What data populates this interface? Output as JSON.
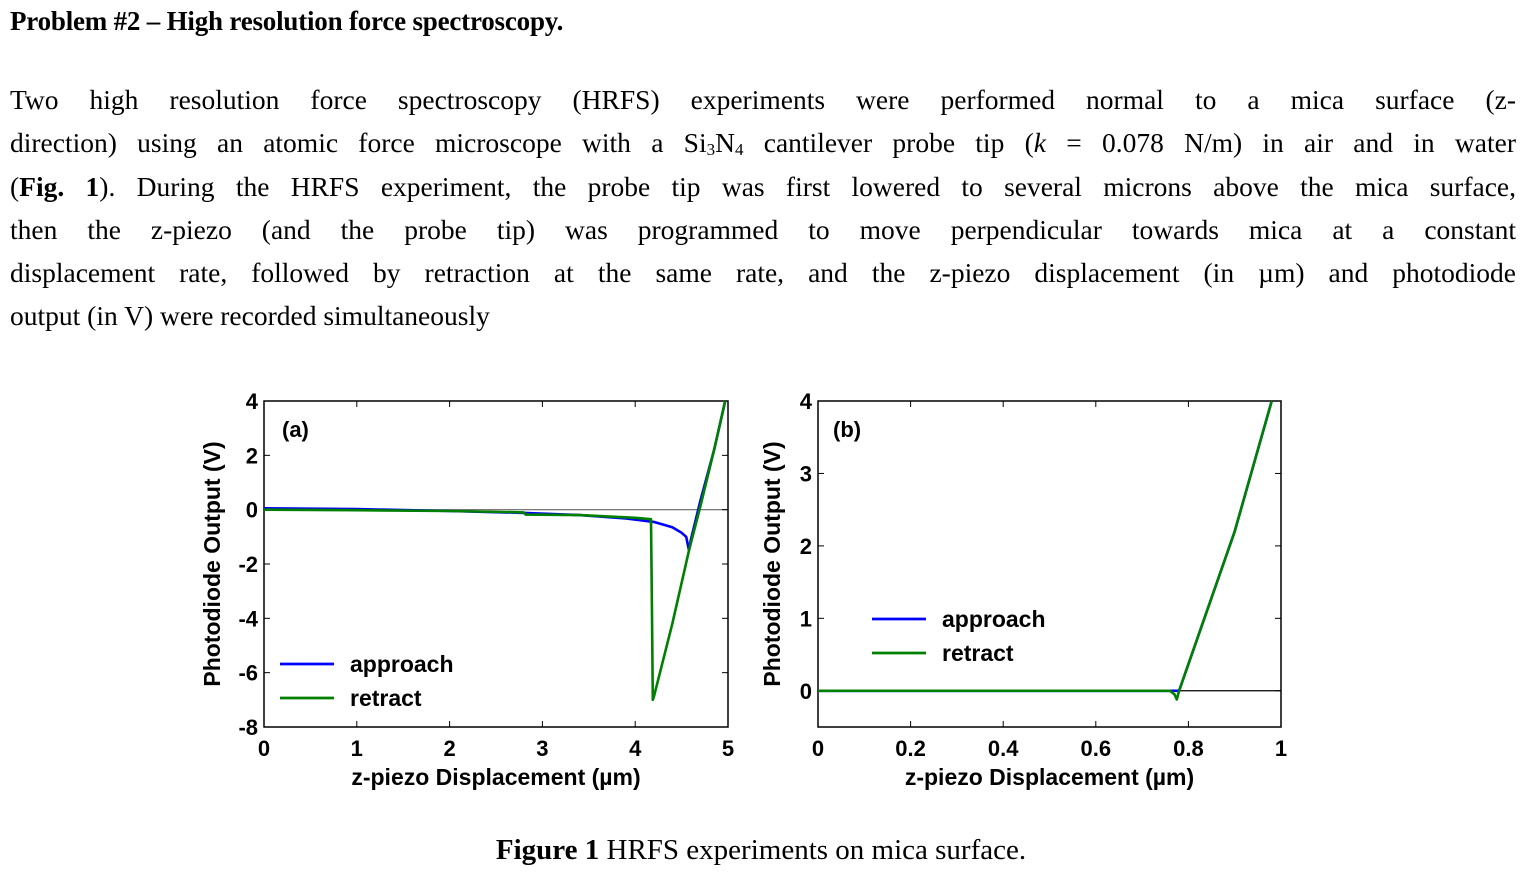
{
  "document": {
    "title": "Problem #2 – High resolution force spectroscopy.",
    "paragraph_lines": [
      {
        "parts": [
          {
            "t": "Two high resolution force spectroscopy (HRFS) experiments were performed normal to a mica surface (z-"
          }
        ]
      },
      {
        "parts": [
          {
            "t": "direction) using an atomic force microscope with a Si"
          },
          {
            "t": "3",
            "sub": true
          },
          {
            "t": "N"
          },
          {
            "t": "4",
            "sub": true
          },
          {
            "t": " cantilever probe tip ("
          },
          {
            "t": "k",
            "i": true
          },
          {
            "t": " = 0.078 N/m) in air and in water"
          }
        ]
      },
      {
        "parts": [
          {
            "t": "("
          },
          {
            "t": "Fig. 1",
            "b": true
          },
          {
            "t": "). During the HRFS experiment, the probe tip was first lowered to several microns above the mica surface,"
          }
        ]
      },
      {
        "parts": [
          {
            "t": "then the z-piezo (and the probe tip) was programmed to move perpendicular towards mica at a constant"
          }
        ]
      },
      {
        "parts": [
          {
            "t": "displacement rate, followed by retraction at the same rate, and the z-piezo displacement (in µm) and photodiode"
          }
        ]
      },
      {
        "parts": [
          {
            "t": "output (in V) were recorded simultaneously"
          }
        ]
      }
    ],
    "caption": {
      "label": "Figure 1",
      "text": " HRFS experiments on mica surface."
    }
  },
  "colors": {
    "approach": "#0000ff",
    "retract": "#008000",
    "axis": "#000000",
    "zero_line": "#555555"
  },
  "chart_data": [
    {
      "type": "line",
      "panel_label": "(a)",
      "xlabel": "z-piezo Displacement (µm)",
      "ylabel": "Photodiode Output (V)",
      "xlim": [
        0,
        5
      ],
      "ylim": [
        -8,
        4
      ],
      "xticks": [
        0,
        1,
        2,
        3,
        4,
        5
      ],
      "yticks": [
        -8,
        -6,
        -4,
        -2,
        0,
        2,
        4
      ],
      "grid": false,
      "zero_line": true,
      "legend": {
        "position": "bottom-left",
        "entries": [
          "approach",
          "retract"
        ]
      },
      "series": [
        {
          "name": "approach",
          "color_key": "approach",
          "x": [
            0,
            1,
            2,
            2.8,
            3.4,
            3.9,
            4.2,
            4.4,
            4.5,
            4.55,
            4.58,
            4.6,
            4.7,
            4.85,
            4.97
          ],
          "y": [
            0.05,
            0.02,
            -0.05,
            -0.12,
            -0.2,
            -0.32,
            -0.45,
            -0.65,
            -0.85,
            -1.0,
            -1.5,
            -1.1,
            0.3,
            2.2,
            4.0
          ]
        },
        {
          "name": "retract",
          "color_key": "retract",
          "x": [
            0,
            1,
            2,
            2.8,
            2.82,
            3.4,
            4.0,
            4.17,
            4.18,
            4.19,
            4.2,
            4.4,
            4.58,
            4.7,
            4.85,
            4.97
          ],
          "y": [
            0.0,
            -0.02,
            -0.05,
            -0.1,
            -0.18,
            -0.2,
            -0.3,
            -0.35,
            -3.5,
            -7.0,
            -6.9,
            -4.2,
            -1.5,
            0.1,
            2.2,
            4.0
          ]
        }
      ]
    },
    {
      "type": "line",
      "panel_label": "(b)",
      "xlabel": "z-piezo Displacement (µm)",
      "ylabel": "Photodiode Output (V)",
      "xlim": [
        0,
        1
      ],
      "ylim": [
        -0.5,
        4
      ],
      "xticks": [
        0,
        0.2,
        0.4,
        0.6,
        0.8,
        1
      ],
      "yticks": [
        0,
        1,
        2,
        3,
        4
      ],
      "grid": false,
      "zero_line": true,
      "legend": {
        "position": "center-left",
        "entries": [
          "approach",
          "retract"
        ]
      },
      "series": [
        {
          "name": "approach",
          "color_key": "approach",
          "x": [
            0,
            0.4,
            0.77,
            0.78,
            0.9,
            0.98
          ],
          "y": [
            0,
            0,
            0,
            0,
            2.2,
            4.0
          ]
        },
        {
          "name": "retract",
          "color_key": "retract",
          "x": [
            0,
            0.4,
            0.76,
            0.77,
            0.775,
            0.78,
            0.9,
            0.98
          ],
          "y": [
            0,
            0,
            0,
            -0.05,
            -0.12,
            0,
            2.2,
            4.0
          ]
        }
      ]
    }
  ]
}
